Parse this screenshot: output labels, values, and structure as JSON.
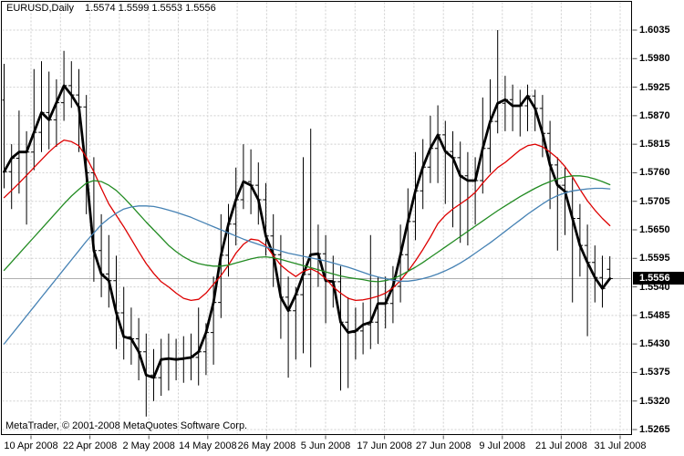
{
  "title": {
    "symbol_period": "EURUSD,Daily",
    "ohlc_values": "1.5574 1.5599 1.5553 1.5556"
  },
  "footer": {
    "credit": "MetaTrader, © 2001-2008 MetaQuotes Software Corp."
  },
  "colors": {
    "background": "#ffffff",
    "border": "#000000",
    "grid": "#cfcfcf",
    "bar": "#000000",
    "close_line": "#000000",
    "ma_fast": "#dd0000",
    "ma_medium": "#228b22",
    "ma_slow": "#4682b4",
    "current_price_line": "#b0b0b0",
    "tag_bg": "#000000",
    "tag_text": "#ffffff",
    "axis_text": "#000000"
  },
  "chart_data": {
    "type": "bar",
    "title": "EURUSD,Daily",
    "subtitle": "OHLC bars with close line and 3 moving averages",
    "last_bar": {
      "open": 1.5574,
      "high": 1.5599,
      "low": 1.5553,
      "close": 1.5556
    },
    "current_price": "1.5556",
    "grid": "dashed",
    "legend_position": "none",
    "y_axis": {
      "min": 1.5265,
      "max": 1.6035,
      "tick_step": 0.0055,
      "tick_labels": [
        "1.6035",
        "1.5980",
        "1.5925",
        "1.5870",
        "1.5815",
        "1.5760",
        "1.5705",
        "1.5650",
        "1.5595",
        "1.5540",
        "1.5485",
        "1.5430",
        "1.5375",
        "1.5320",
        "1.5265"
      ]
    },
    "x_axis": {
      "tick_labels": [
        "10 Apr 2008",
        "22 Apr 2008",
        "2 May 2008",
        "14 May 2008",
        "26 May 2008",
        "5 Jun 2008",
        "17 Jun 2008",
        "27 Jun 2008",
        "9 Jul 2008",
        "21 Jul 2008",
        "31 Jul 2008"
      ]
    },
    "bars": [
      [
        1.59,
        1.597,
        1.573,
        1.5762
      ],
      [
        1.5762,
        1.5815,
        1.569,
        1.5788
      ],
      [
        1.5788,
        1.588,
        1.572,
        1.58
      ],
      [
        1.58,
        1.584,
        1.566,
        1.58
      ],
      [
        1.58,
        1.596,
        1.5765,
        1.5838
      ],
      [
        1.5838,
        1.5975,
        1.58,
        1.5876
      ],
      [
        1.5876,
        1.5955,
        1.5805,
        1.5862
      ],
      [
        1.5862,
        1.594,
        1.581,
        1.5895
      ],
      [
        1.5895,
        1.5995,
        1.586,
        1.5928
      ],
      [
        1.5928,
        1.5975,
        1.5885,
        1.591
      ],
      [
        1.591,
        1.596,
        1.58,
        1.5887
      ],
      [
        1.5887,
        1.591,
        1.568,
        1.576
      ],
      [
        1.576,
        1.579,
        1.555,
        1.561
      ],
      [
        1.561,
        1.568,
        1.552,
        1.5565
      ],
      [
        1.5565,
        1.564,
        1.55,
        1.5552
      ],
      [
        1.5552,
        1.56,
        1.542,
        1.549
      ],
      [
        1.549,
        1.554,
        1.54,
        1.5444
      ],
      [
        1.5444,
        1.55,
        1.539,
        1.544
      ],
      [
        1.544,
        1.548,
        1.536,
        1.5415
      ],
      [
        1.5415,
        1.545,
        1.529,
        1.537
      ],
      [
        1.537,
        1.542,
        1.532,
        1.5365
      ],
      [
        1.5365,
        1.544,
        1.533,
        1.54
      ],
      [
        1.54,
        1.545,
        1.534,
        1.5402
      ],
      [
        1.5402,
        1.544,
        1.536,
        1.54
      ],
      [
        1.54,
        1.5445,
        1.5355,
        1.5402
      ],
      [
        1.5402,
        1.545,
        1.536,
        1.5404
      ],
      [
        1.5404,
        1.55,
        1.535,
        1.5415
      ],
      [
        1.5415,
        1.547,
        1.537,
        1.5452
      ],
      [
        1.5452,
        1.556,
        1.539,
        1.551
      ],
      [
        1.551,
        1.568,
        1.548,
        1.5601
      ],
      [
        1.5601,
        1.57,
        1.556,
        1.5661
      ],
      [
        1.5661,
        1.577,
        1.562,
        1.5708
      ],
      [
        1.5708,
        1.5815,
        1.569,
        1.5743
      ],
      [
        1.5743,
        1.5805,
        1.568,
        1.5736
      ],
      [
        1.5736,
        1.578,
        1.566,
        1.5708
      ],
      [
        1.5708,
        1.574,
        1.56,
        1.5638
      ],
      [
        1.5638,
        1.568,
        1.554,
        1.5602
      ],
      [
        1.5602,
        1.564,
        1.544,
        1.552
      ],
      [
        1.552,
        1.556,
        1.5365,
        1.5494
      ],
      [
        1.5494,
        1.554,
        1.54,
        1.5525
      ],
      [
        1.5525,
        1.579,
        1.5412,
        1.5564
      ],
      [
        1.5564,
        1.5845,
        1.5385,
        1.5602
      ],
      [
        1.5602,
        1.566,
        1.554,
        1.5604
      ],
      [
        1.5604,
        1.564,
        1.547,
        1.5552
      ],
      [
        1.5552,
        1.56,
        1.55,
        1.555
      ],
      [
        1.555,
        1.558,
        1.534,
        1.5472
      ],
      [
        1.5472,
        1.552,
        1.5345,
        1.5452
      ],
      [
        1.5452,
        1.55,
        1.54,
        1.5455
      ],
      [
        1.5455,
        1.551,
        1.541,
        1.5467
      ],
      [
        1.5467,
        1.564,
        1.542,
        1.5472
      ],
      [
        1.5472,
        1.556,
        1.543,
        1.5508
      ],
      [
        1.5508,
        1.556,
        1.546,
        1.5508
      ],
      [
        1.5508,
        1.558,
        1.547,
        1.5541
      ],
      [
        1.5541,
        1.566,
        1.551,
        1.5602
      ],
      [
        1.5602,
        1.573,
        1.557,
        1.5666
      ],
      [
        1.5666,
        1.58,
        1.563,
        1.5725
      ],
      [
        1.5725,
        1.5825,
        1.569,
        1.5771
      ],
      [
        1.5771,
        1.587,
        1.574,
        1.5807
      ],
      [
        1.5807,
        1.589,
        1.574,
        1.5833
      ],
      [
        1.5833,
        1.586,
        1.57,
        1.5801
      ],
      [
        1.5801,
        1.584,
        1.5655,
        1.5789
      ],
      [
        1.5789,
        1.582,
        1.5625,
        1.5754
      ],
      [
        1.5754,
        1.58,
        1.562,
        1.5745
      ],
      [
        1.5745,
        1.579,
        1.566,
        1.5745
      ],
      [
        1.5745,
        1.5905,
        1.572,
        1.5807
      ],
      [
        1.5807,
        1.594,
        1.576,
        1.5859
      ],
      [
        1.5859,
        1.6035,
        1.5836,
        1.5894
      ],
      [
        1.5894,
        1.5947,
        1.584,
        1.5901
      ],
      [
        1.5901,
        1.593,
        1.584,
        1.5889
      ],
      [
        1.5889,
        1.592,
        1.583,
        1.5889
      ],
      [
        1.5889,
        1.593,
        1.584,
        1.5908
      ],
      [
        1.5908,
        1.592,
        1.584,
        1.5884
      ],
      [
        1.5884,
        1.591,
        1.579,
        1.5836
      ],
      [
        1.5836,
        1.586,
        1.569,
        1.5775
      ],
      [
        1.5775,
        1.579,
        1.561,
        1.5736
      ],
      [
        1.5736,
        1.577,
        1.564,
        1.5724
      ],
      [
        1.5724,
        1.575,
        1.551,
        1.5672
      ],
      [
        1.5672,
        1.57,
        1.556,
        1.562
      ],
      [
        1.562,
        1.566,
        1.5445,
        1.5587
      ],
      [
        1.5587,
        1.562,
        1.551,
        1.5558
      ],
      [
        1.5558,
        1.56,
        1.55,
        1.5537
      ],
      [
        1.5574,
        1.5599,
        1.5553,
        1.5556
      ]
    ],
    "overlays": [
      {
        "name": "close-line",
        "color": "#000000",
        "width": 2.8,
        "source": "close"
      },
      {
        "name": "ma-fast-red",
        "color": "#dd0000",
        "width": 1.3,
        "values": [
          1.5712,
          1.5726,
          1.574,
          1.5755,
          1.577,
          1.5785,
          1.58,
          1.5813,
          1.5823,
          1.582,
          1.5812,
          1.579,
          1.5762,
          1.573,
          1.57,
          1.5678,
          1.5656,
          1.5632,
          1.5608,
          1.5585,
          1.5566,
          1.555,
          1.554,
          1.5528,
          1.5518,
          1.5514,
          1.5516,
          1.5528,
          1.5545,
          1.5562,
          1.5582,
          1.5605,
          1.5622,
          1.5632,
          1.563,
          1.562,
          1.56,
          1.5582,
          1.557,
          1.556,
          1.557,
          1.5575,
          1.5568,
          1.5556,
          1.554,
          1.5528,
          1.5518,
          1.5514,
          1.5515,
          1.5518,
          1.5522,
          1.5528,
          1.5538,
          1.5552,
          1.557,
          1.559,
          1.5612,
          1.5636,
          1.5662,
          1.5678,
          1.569,
          1.57,
          1.571,
          1.5722,
          1.574,
          1.5756,
          1.577,
          1.578,
          1.5792,
          1.5804,
          1.5812,
          1.5815,
          1.581,
          1.58,
          1.5788,
          1.5772,
          1.5752,
          1.5728,
          1.5706,
          1.5688,
          1.5672,
          1.5658
        ]
      },
      {
        "name": "ma-medium-green",
        "color": "#228b22",
        "width": 1.3,
        "values": [
          1.5572,
          1.5588,
          1.5604,
          1.562,
          1.5636,
          1.5652,
          1.5668,
          1.5684,
          1.57,
          1.5715,
          1.5728,
          1.574,
          1.5745,
          1.5743,
          1.5736,
          1.5726,
          1.5712,
          1.5697,
          1.5681,
          1.5665,
          1.565,
          1.5635,
          1.562,
          1.5608,
          1.5598,
          1.559,
          1.5585,
          1.5582,
          1.558,
          1.558,
          1.5582,
          1.5586,
          1.559,
          1.5594,
          1.5597,
          1.5598,
          1.5596,
          1.5593,
          1.5589,
          1.5585,
          1.5581,
          1.5577,
          1.5573,
          1.5569,
          1.5565,
          1.5561,
          1.5558,
          1.5556,
          1.5554,
          1.5551,
          1.555,
          1.5552,
          1.5556,
          1.5562,
          1.557,
          1.5578,
          1.5587,
          1.5597,
          1.5607,
          1.5617,
          1.5627,
          1.5637,
          1.5647,
          1.5657,
          1.5667,
          1.5677,
          1.5687,
          1.5696,
          1.5705,
          1.5714,
          1.5722,
          1.573,
          1.5737,
          1.5743,
          1.5748,
          1.5752,
          1.5754,
          1.5754,
          1.5752,
          1.5748,
          1.5743,
          1.5737
        ]
      },
      {
        "name": "ma-slow-blue",
        "color": "#4682b4",
        "width": 1.3,
        "values": [
          1.543,
          1.5448,
          1.5466,
          1.5484,
          1.5502,
          1.552,
          1.5538,
          1.5556,
          1.5574,
          1.5592,
          1.561,
          1.5628,
          1.5644,
          1.566,
          1.5672,
          1.5682,
          1.569,
          1.5694,
          1.5696,
          1.5696,
          1.5695,
          1.5692,
          1.5688,
          1.5684,
          1.5679,
          1.5674,
          1.5668,
          1.5662,
          1.5656,
          1.565,
          1.5644,
          1.5638,
          1.5632,
          1.5627,
          1.5622,
          1.5617,
          1.5613,
          1.5609,
          1.5605,
          1.5602,
          1.5599,
          1.5596,
          1.5593,
          1.559,
          1.5586,
          1.5582,
          1.5578,
          1.5573,
          1.5568,
          1.5563,
          1.5559,
          1.5556,
          1.5553,
          1.5551,
          1.5551,
          1.5553,
          1.5556,
          1.556,
          1.5565,
          1.5571,
          1.5578,
          1.5586,
          1.5595,
          1.5605,
          1.5615,
          1.5625,
          1.5636,
          1.5647,
          1.5658,
          1.5669,
          1.568,
          1.569,
          1.57,
          1.5709,
          1.5716,
          1.5721,
          1.5725,
          1.5727,
          1.5729,
          1.573,
          1.573,
          1.5729
        ]
      }
    ]
  }
}
